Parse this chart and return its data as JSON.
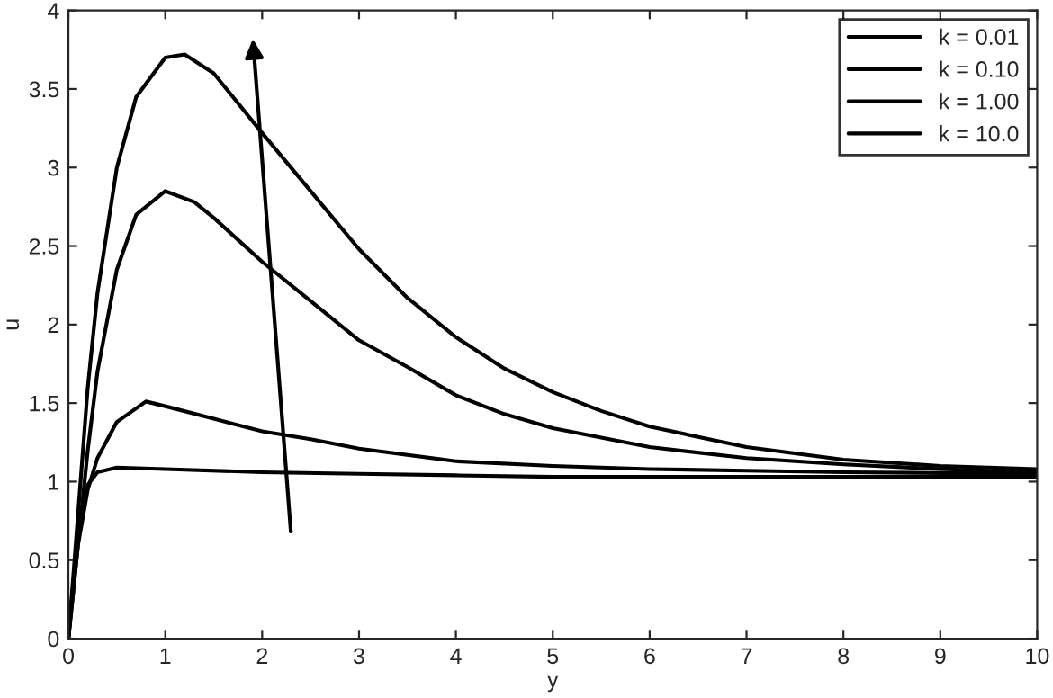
{
  "chart_data": {
    "type": "line",
    "xlabel": "y",
    "ylabel": "u",
    "legend": "top right",
    "grid": false,
    "marker": "none",
    "line_style": "solid",
    "xlim": [
      0,
      10
    ],
    "xticks": [
      0,
      1,
      2,
      3,
      4,
      5,
      6,
      7,
      8,
      9,
      10
    ],
    "ylim": [
      0,
      4
    ],
    "yticks": [
      0,
      0.5,
      1,
      1.5,
      2,
      2.5,
      3,
      3.5,
      4
    ],
    "series": [
      {
        "name": "k = 0.01",
        "color": "#000000",
        "x": [
          0,
          0.1,
          0.2,
          0.3,
          0.5,
          1,
          2,
          3,
          4,
          5,
          10
        ],
        "values": [
          0,
          0.7,
          0.98,
          1.06,
          1.09,
          1.08,
          1.06,
          1.05,
          1.04,
          1.03,
          1.03
        ]
      },
      {
        "name": "k = 0.10",
        "color": "#000000",
        "x": [
          0,
          0.1,
          0.2,
          0.3,
          0.5,
          0.8,
          1,
          1.5,
          2,
          2.5,
          3,
          4,
          5,
          6,
          7,
          8,
          10
        ],
        "values": [
          0,
          0.6,
          0.95,
          1.15,
          1.38,
          1.51,
          1.48,
          1.4,
          1.32,
          1.27,
          1.21,
          1.13,
          1.1,
          1.08,
          1.07,
          1.06,
          1.05
        ]
      },
      {
        "name": "k = 1.00",
        "color": "#000000",
        "x": [
          0,
          0.1,
          0.2,
          0.3,
          0.5,
          0.7,
          1,
          1.3,
          1.5,
          2,
          2.5,
          3,
          3.5,
          4,
          4.5,
          5,
          6,
          7,
          8,
          9,
          10
        ],
        "values": [
          0,
          0.6,
          1.2,
          1.7,
          2.35,
          2.7,
          2.85,
          2.78,
          2.68,
          2.4,
          2.15,
          1.9,
          1.73,
          1.55,
          1.43,
          1.34,
          1.22,
          1.15,
          1.11,
          1.08,
          1.06
        ]
      },
      {
        "name": "k = 10.0",
        "color": "#000000",
        "x": [
          0,
          0.1,
          0.2,
          0.3,
          0.5,
          0.7,
          1,
          1.2,
          1.5,
          2,
          2.5,
          3,
          3.5,
          4,
          4.5,
          5,
          5.5,
          6,
          7,
          8,
          9,
          10
        ],
        "values": [
          0,
          0.8,
          1.6,
          2.2,
          3.0,
          3.45,
          3.7,
          3.72,
          3.6,
          3.22,
          2.85,
          2.48,
          2.17,
          1.92,
          1.72,
          1.57,
          1.45,
          1.35,
          1.22,
          1.14,
          1.1,
          1.08
        ]
      }
    ]
  }
}
